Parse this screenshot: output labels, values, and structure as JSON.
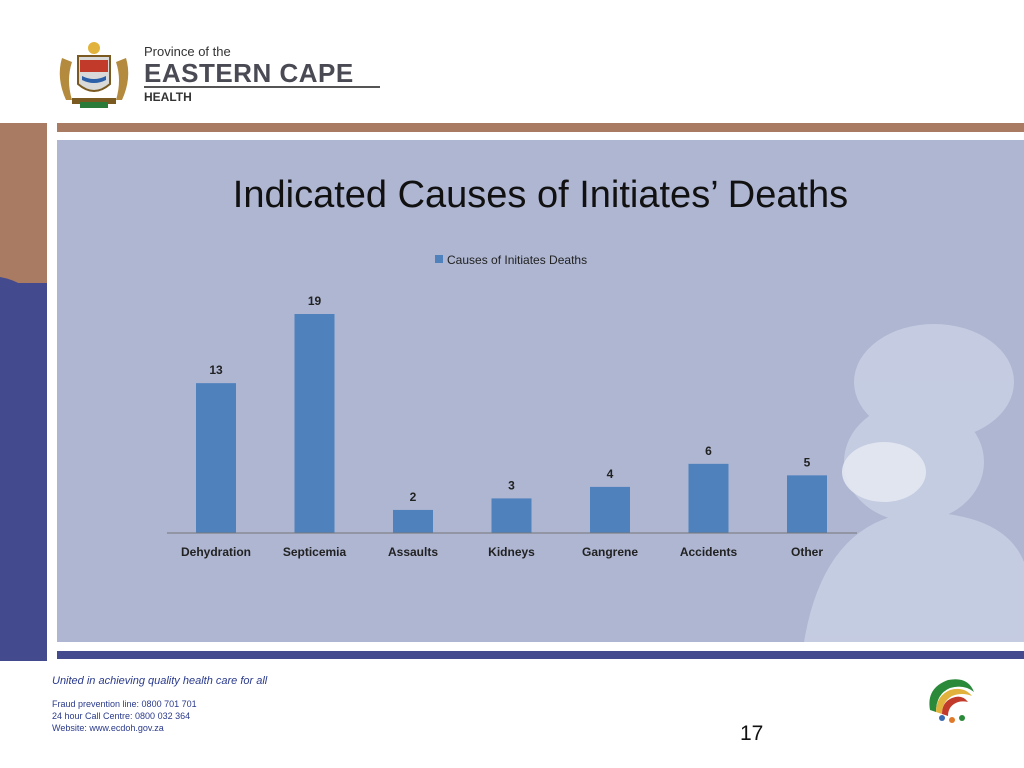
{
  "header": {
    "org_line1": "Province of the",
    "org_line2": "EASTERN CAPE",
    "org_line3": "HEALTH"
  },
  "slide": {
    "title": "Indicated Causes of Initiates’ Deaths",
    "page_number": "17"
  },
  "footer": {
    "motto": "United in achieving quality health care for all",
    "fraud_line": "Fraud prevention line: 0800 701 701",
    "call_centre": "24 hour Call Centre: 0800 032 364",
    "website": "Website: www.ecdoh.gov.za"
  },
  "colors": {
    "bar": "#4f81bd",
    "panel": "#aeb6d2",
    "brown_band": "#a97b62",
    "blue_band": "#444a8e",
    "footer_text": "#2a3a8c"
  },
  "chart_data": {
    "type": "bar",
    "title": "",
    "categories": [
      "Dehydration",
      "Septicemia",
      "Assaults",
      "Kidneys",
      "Gangrene",
      "Accidents",
      "Other"
    ],
    "series": [
      {
        "name": "Causes of Initiates Deaths",
        "values": [
          13,
          19,
          2,
          3,
          4,
          6,
          5
        ]
      }
    ],
    "xlabel": "",
    "ylabel": "",
    "ylim": [
      0,
      20
    ],
    "legend": "top-center",
    "grid": false,
    "data_labels": true
  }
}
